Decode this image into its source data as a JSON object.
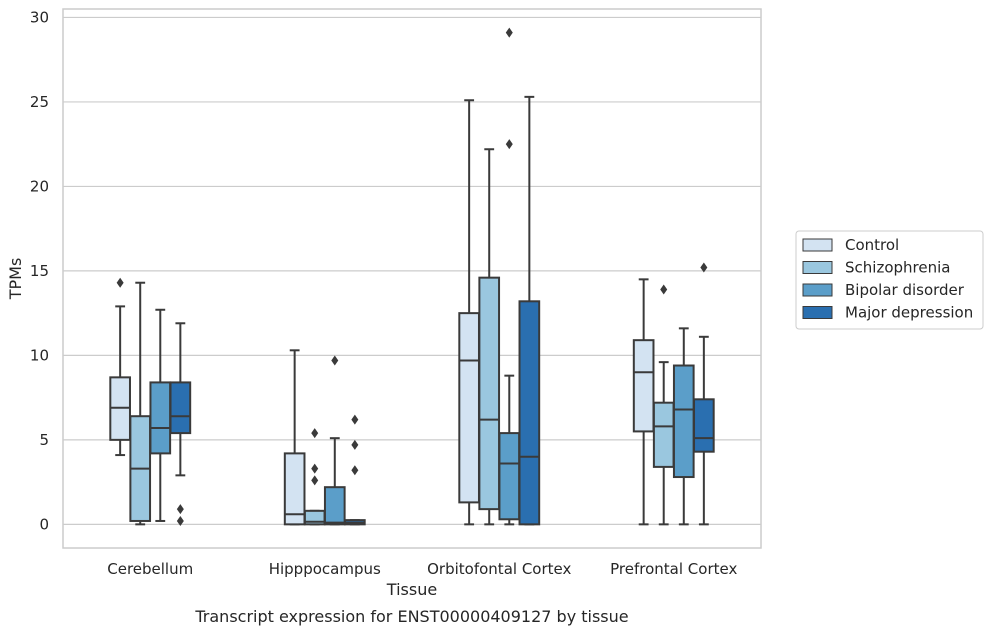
{
  "chart_data": {
    "type": "box",
    "title": "",
    "xlabel": "Tissue",
    "ylabel": "TPMs",
    "caption": "Transcript expression for ENST00000409127 by tissue",
    "ylim": [
      -1.4,
      30.5
    ],
    "yticks": [
      0,
      5,
      10,
      15,
      20,
      25,
      30
    ],
    "grid": "horizontal",
    "legend_position": "right, outside plot",
    "categories": [
      "Cerebellum",
      "Hipppocampus",
      "Orbitofontal Cortex",
      "Prefrontal Cortex"
    ],
    "series": [
      {
        "name": "Control",
        "color": "#d3e3f2",
        "boxes": [
          {
            "whislo": 4.1,
            "q1": 5.0,
            "med": 6.9,
            "q3": 8.7,
            "whishi": 12.9,
            "fliers": [
              14.3
            ]
          },
          {
            "whislo": 0.0,
            "q1": 0.0,
            "med": 0.6,
            "q3": 4.2,
            "whishi": 10.3,
            "fliers": []
          },
          {
            "whislo": 0.0,
            "q1": 1.3,
            "med": 9.7,
            "q3": 12.5,
            "whishi": 25.1,
            "fliers": []
          },
          {
            "whislo": 0.0,
            "q1": 5.5,
            "med": 9.0,
            "q3": 10.9,
            "whishi": 14.5,
            "fliers": []
          }
        ]
      },
      {
        "name": "Schizophrenia",
        "color": "#9ac7df",
        "boxes": [
          {
            "whislo": 0.0,
            "q1": 0.2,
            "med": 3.3,
            "q3": 6.4,
            "whishi": 14.3,
            "fliers": []
          },
          {
            "whislo": 0.0,
            "q1": 0.0,
            "med": 0.15,
            "q3": 0.8,
            "whishi": 0.8,
            "fliers": [
              2.6,
              3.3,
              5.4
            ]
          },
          {
            "whislo": 0.0,
            "q1": 0.9,
            "med": 6.2,
            "q3": 14.6,
            "whishi": 22.2,
            "fliers": []
          },
          {
            "whislo": 0.0,
            "q1": 3.4,
            "med": 5.8,
            "q3": 7.2,
            "whishi": 9.6,
            "fliers": [
              13.9
            ]
          }
        ]
      },
      {
        "name": "Bipolar disorder",
        "color": "#5b9ec9",
        "boxes": [
          {
            "whislo": 0.2,
            "q1": 4.2,
            "med": 5.7,
            "q3": 8.4,
            "whishi": 12.7,
            "fliers": []
          },
          {
            "whislo": 0.0,
            "q1": 0.0,
            "med": 0.1,
            "q3": 2.2,
            "whishi": 5.1,
            "fliers": [
              9.7
            ]
          },
          {
            "whislo": 0.0,
            "q1": 0.3,
            "med": 3.6,
            "q3": 5.4,
            "whishi": 8.8,
            "fliers": [
              22.5,
              29.1
            ]
          },
          {
            "whislo": 0.0,
            "q1": 2.8,
            "med": 6.8,
            "q3": 9.4,
            "whishi": 11.6,
            "fliers": []
          }
        ]
      },
      {
        "name": "Major depression",
        "color": "#2a6fb0",
        "boxes": [
          {
            "whislo": 2.9,
            "q1": 5.4,
            "med": 6.4,
            "q3": 8.4,
            "whishi": 11.9,
            "fliers": [
              0.2,
              0.9
            ]
          },
          {
            "whislo": 0.0,
            "q1": 0.0,
            "med": 0.1,
            "q3": 0.25,
            "whishi": 0.25,
            "fliers": [
              3.2,
              4.7,
              6.2
            ]
          },
          {
            "whislo": 0.0,
            "q1": 0.0,
            "med": 4.0,
            "q3": 13.2,
            "whishi": 25.3,
            "fliers": []
          },
          {
            "whislo": 0.0,
            "q1": 4.3,
            "med": 5.1,
            "q3": 7.4,
            "whishi": 11.1,
            "fliers": [
              15.2
            ]
          }
        ]
      }
    ]
  }
}
